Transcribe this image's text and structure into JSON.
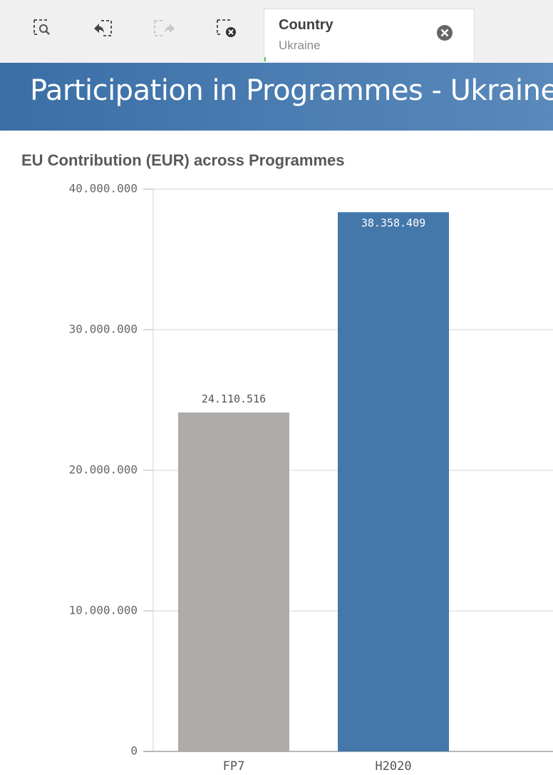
{
  "toolbar": {
    "buttons": [
      {
        "name": "smart-search-button",
        "icon": "smart-search-icon"
      },
      {
        "name": "step-back-button",
        "icon": "step-back-icon"
      },
      {
        "name": "step-forward-button",
        "icon": "step-forward-icon"
      },
      {
        "name": "clear-selections-button",
        "icon": "clear-selections-icon"
      }
    ],
    "selection": {
      "field": "Country",
      "value": "Ukraine",
      "clear_icon": "close-circle-icon"
    }
  },
  "banner": {
    "title": "Participation in Programmes - Ukraine",
    "color_start": "#3a6ea5",
    "color_end": "#5a89bb"
  },
  "chart_data": {
    "type": "bar",
    "title": "EU Contribution (EUR) across Programmes",
    "categories": [
      "FP7",
      "H2020"
    ],
    "values": [
      24110516,
      38358409
    ],
    "value_labels": [
      "24.110.516",
      "38.358.409"
    ],
    "bar_colors": [
      "#aeaba9",
      "#4477aa"
    ],
    "ylim": [
      0,
      40000000
    ],
    "yticks": [
      0,
      10000000,
      20000000,
      30000000,
      40000000
    ],
    "ytick_labels": [
      "0",
      "10.000.000",
      "20.000.000",
      "30.000.000",
      "40.000.000"
    ],
    "grid": true,
    "xlabel": "",
    "ylabel": ""
  }
}
